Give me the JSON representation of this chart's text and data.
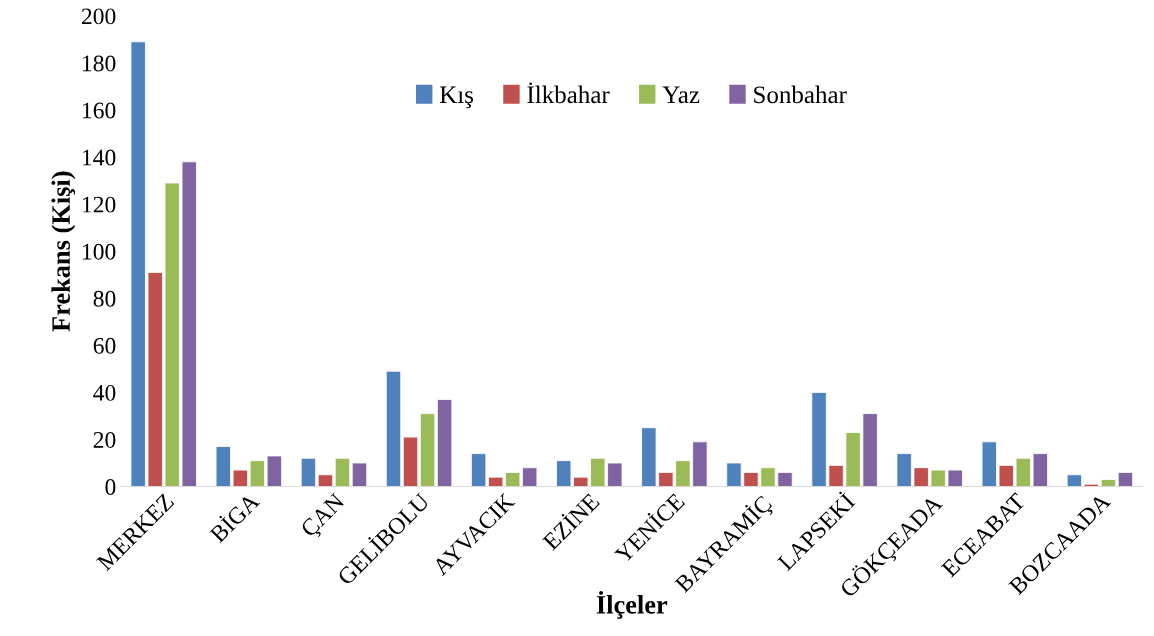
{
  "chart_data": {
    "type": "bar",
    "xlabel": "İlçeler",
    "ylabel": "Frekans (Kişi)",
    "categories": [
      "MERKEZ",
      "BİGA",
      "ÇAN",
      "GELİBOLU",
      "AYVACIK",
      "EZİNE",
      "YENİCE",
      "BAYRAMİÇ",
      "LAPSEKİ",
      "GÖKÇEADA",
      "ECEABAT",
      "BOZCAADA"
    ],
    "series": [
      {
        "name": "Kış",
        "color": "#4f81bd",
        "values": [
          189,
          17,
          12,
          49,
          14,
          11,
          25,
          10,
          40,
          14,
          19,
          5
        ]
      },
      {
        "name": "İlkbahar",
        "color": "#c0504d",
        "values": [
          91,
          7,
          5,
          21,
          4,
          4,
          6,
          6,
          9,
          8,
          9,
          1
        ]
      },
      {
        "name": "Yaz",
        "color": "#9bbb59",
        "values": [
          129,
          11,
          12,
          31,
          6,
          12,
          11,
          8,
          23,
          7,
          12,
          3
        ]
      },
      {
        "name": "Sonbahar",
        "color": "#8064a2",
        "values": [
          138,
          13,
          10,
          37,
          8,
          10,
          19,
          6,
          31,
          7,
          14,
          6
        ]
      }
    ],
    "ylim": [
      0,
      200
    ],
    "yticks": [
      0,
      20,
      40,
      60,
      80,
      100,
      120,
      140,
      160,
      180,
      200
    ],
    "grid": false,
    "legend": "top"
  }
}
